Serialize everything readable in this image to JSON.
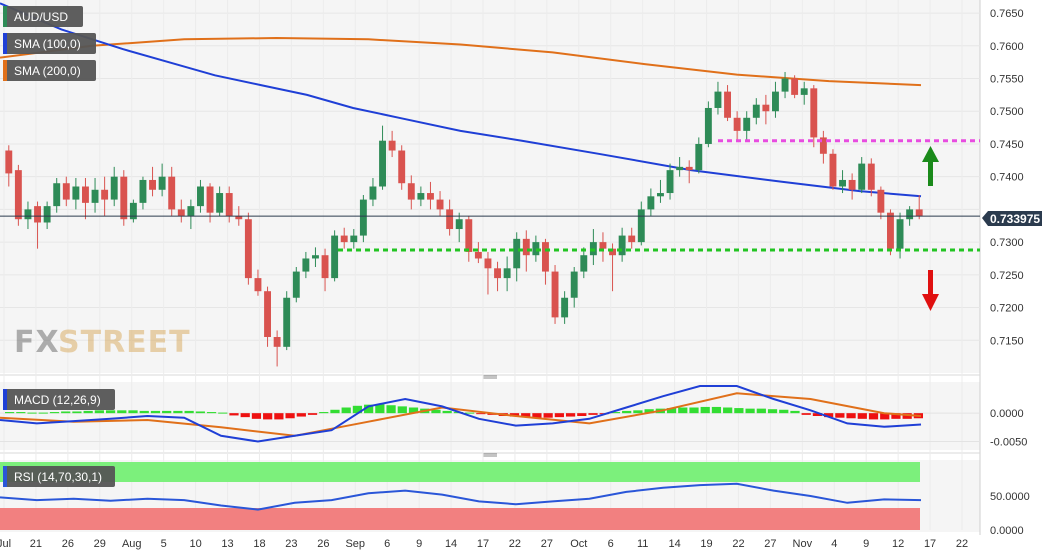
{
  "legend": {
    "pair": "AUD/USD",
    "sma100": "SMA (100,0)",
    "sma200": "SMA (200,0)",
    "macd": "MACD (12,26,9)",
    "rsi": "RSI (14,70,30,1)"
  },
  "watermark": {
    "part1": "FX",
    "part2": "STREET"
  },
  "current_price_label": "0.733975",
  "colors": {
    "bull": "#2e8b57",
    "bear": "#d9534f",
    "sma100": "#1f3fd6",
    "sma200": "#e0701a",
    "support": "#22c422",
    "resistance": "#e84ce0",
    "macd_line": "#1f3fd6",
    "signal_line": "#e0701a",
    "rsi_line": "#2a56d8",
    "rsi_overbought": "#7cf07c",
    "rsi_oversold": "#f28080",
    "arrow_up": "#1a8a1a",
    "arrow_down": "#e01010"
  },
  "chart_data": [
    {
      "type": "candlestick",
      "title": "AUD/USD",
      "x_labels": [
        "Jul",
        "21",
        "26",
        "29",
        "Aug",
        "5",
        "10",
        "13",
        "18",
        "23",
        "26",
        "Sep",
        "6",
        "9",
        "14",
        "17",
        "22",
        "27",
        "Oct",
        "6",
        "11",
        "14",
        "19",
        "22",
        "27",
        "Nov",
        "4",
        "9",
        "12",
        "17",
        "22"
      ],
      "y_ticks": [
        0.715,
        0.72,
        0.725,
        0.73,
        0.735,
        0.74,
        0.745,
        0.75,
        0.755,
        0.76,
        0.765
      ],
      "y_tick_labels": [
        "0.7150",
        "0.7200",
        "0.7250",
        "0.7300",
        "",
        "0.7400",
        "0.7450",
        "0.7500",
        "0.7550",
        "0.7600",
        "0.7650"
      ],
      "ylim": [
        0.71,
        0.767
      ],
      "last_price": 0.733975,
      "support_level": 0.7288,
      "resistance_level": 0.7455,
      "candles": [
        [
          0.744,
          0.7405,
          0.7448,
          0.7385
        ],
        [
          0.741,
          0.7335,
          0.7418,
          0.7325
        ],
        [
          0.7335,
          0.735,
          0.7362,
          0.732
        ],
        [
          0.7355,
          0.733,
          0.7362,
          0.729
        ],
        [
          0.733,
          0.7355,
          0.7362,
          0.732
        ],
        [
          0.7355,
          0.739,
          0.7398,
          0.7345
        ],
        [
          0.739,
          0.7365,
          0.74,
          0.7355
        ],
        [
          0.7365,
          0.7385,
          0.7398,
          0.735
        ],
        [
          0.7385,
          0.736,
          0.7398,
          0.7335
        ],
        [
          0.736,
          0.738,
          0.7398,
          0.7345
        ],
        [
          0.738,
          0.7365,
          0.74,
          0.734
        ],
        [
          0.7365,
          0.74,
          0.7415,
          0.7355
        ],
        [
          0.74,
          0.7335,
          0.741,
          0.7325
        ],
        [
          0.7335,
          0.736,
          0.7365,
          0.733
        ],
        [
          0.736,
          0.7395,
          0.74,
          0.735
        ],
        [
          0.7395,
          0.738,
          0.7415,
          0.737
        ],
        [
          0.738,
          0.74,
          0.742,
          0.737
        ],
        [
          0.74,
          0.735,
          0.7415,
          0.734
        ],
        [
          0.735,
          0.734,
          0.7365,
          0.733
        ],
        [
          0.734,
          0.7355,
          0.7365,
          0.732
        ],
        [
          0.7355,
          0.7385,
          0.7395,
          0.7345
        ],
        [
          0.7385,
          0.7345,
          0.739,
          0.733
        ],
        [
          0.7345,
          0.7375,
          0.7385,
          0.734
        ],
        [
          0.7375,
          0.734,
          0.7385,
          0.733
        ],
        [
          0.734,
          0.7335,
          0.7355,
          0.7325
        ],
        [
          0.7335,
          0.7245,
          0.7345,
          0.7235
        ],
        [
          0.7245,
          0.7225,
          0.7258,
          0.7218
        ],
        [
          0.7225,
          0.7155,
          0.7232,
          0.714
        ],
        [
          0.7155,
          0.714,
          0.7165,
          0.711
        ],
        [
          0.714,
          0.7215,
          0.7225,
          0.7135
        ],
        [
          0.7215,
          0.7255,
          0.7262,
          0.7208
        ],
        [
          0.7255,
          0.7275,
          0.7285,
          0.7245
        ],
        [
          0.7275,
          0.728,
          0.7292,
          0.7262
        ],
        [
          0.728,
          0.7245,
          0.729,
          0.7225
        ],
        [
          0.7245,
          0.731,
          0.7318,
          0.724
        ],
        [
          0.731,
          0.73,
          0.7322,
          0.729
        ],
        [
          0.73,
          0.731,
          0.732,
          0.729
        ],
        [
          0.731,
          0.7365,
          0.7372,
          0.73
        ],
        [
          0.7365,
          0.7385,
          0.7398,
          0.7355
        ],
        [
          0.7385,
          0.7455,
          0.7478,
          0.738
        ],
        [
          0.7455,
          0.744,
          0.747,
          0.743
        ],
        [
          0.744,
          0.739,
          0.7448,
          0.738
        ],
        [
          0.739,
          0.7365,
          0.7402,
          0.735
        ],
        [
          0.7365,
          0.7375,
          0.7385,
          0.7355
        ],
        [
          0.7375,
          0.7365,
          0.7392,
          0.735
        ],
        [
          0.7365,
          0.735,
          0.7378,
          0.734
        ],
        [
          0.735,
          0.732,
          0.7365,
          0.731
        ],
        [
          0.732,
          0.7335,
          0.7345,
          0.73
        ],
        [
          0.7335,
          0.7285,
          0.734,
          0.727
        ],
        [
          0.7285,
          0.7275,
          0.73,
          0.7268
        ],
        [
          0.7275,
          0.726,
          0.7285,
          0.722
        ],
        [
          0.726,
          0.7245,
          0.727,
          0.7225
        ],
        [
          0.7245,
          0.726,
          0.7278,
          0.7225
        ],
        [
          0.726,
          0.7305,
          0.7315,
          0.724
        ],
        [
          0.7305,
          0.728,
          0.7318,
          0.7255
        ],
        [
          0.728,
          0.73,
          0.731,
          0.727
        ],
        [
          0.73,
          0.7255,
          0.7305,
          0.7235
        ],
        [
          0.7255,
          0.7185,
          0.7265,
          0.7175
        ],
        [
          0.7185,
          0.7215,
          0.7225,
          0.7175
        ],
        [
          0.7215,
          0.7255,
          0.7262,
          0.72
        ],
        [
          0.7255,
          0.728,
          0.7292,
          0.7245
        ],
        [
          0.728,
          0.73,
          0.732,
          0.7265
        ],
        [
          0.73,
          0.729,
          0.7315,
          0.727
        ],
        [
          0.729,
          0.728,
          0.7298,
          0.7225
        ],
        [
          0.728,
          0.731,
          0.7322,
          0.727
        ],
        [
          0.731,
          0.73,
          0.7322,
          0.729
        ],
        [
          0.73,
          0.735,
          0.7362,
          0.7295
        ],
        [
          0.735,
          0.737,
          0.7382,
          0.734
        ],
        [
          0.737,
          0.7375,
          0.7395,
          0.736
        ],
        [
          0.7375,
          0.741,
          0.742,
          0.7365
        ],
        [
          0.741,
          0.7415,
          0.743,
          0.74
        ],
        [
          0.7415,
          0.741,
          0.7425,
          0.739
        ],
        [
          0.741,
          0.745,
          0.746,
          0.7405
        ],
        [
          0.745,
          0.7505,
          0.7515,
          0.7445
        ],
        [
          0.7505,
          0.753,
          0.7545,
          0.7495
        ],
        [
          0.753,
          0.749,
          0.754,
          0.7485
        ],
        [
          0.749,
          0.747,
          0.75,
          0.7455
        ],
        [
          0.747,
          0.749,
          0.75,
          0.7455
        ],
        [
          0.749,
          0.751,
          0.752,
          0.748
        ],
        [
          0.751,
          0.75,
          0.7525,
          0.748
        ],
        [
          0.75,
          0.753,
          0.7545,
          0.749
        ],
        [
          0.753,
          0.755,
          0.756,
          0.752
        ],
        [
          0.755,
          0.7525,
          0.7555,
          0.752
        ],
        [
          0.7525,
          0.7535,
          0.7545,
          0.751
        ],
        [
          0.7535,
          0.746,
          0.754,
          0.7445
        ],
        [
          0.746,
          0.7435,
          0.747,
          0.742
        ],
        [
          0.7435,
          0.7385,
          0.7442,
          0.738
        ],
        [
          0.7385,
          0.7395,
          0.741,
          0.7375
        ],
        [
          0.7395,
          0.738,
          0.7405,
          0.7365
        ],
        [
          0.738,
          0.742,
          0.743,
          0.7375
        ],
        [
          0.742,
          0.738,
          0.7428,
          0.737
        ],
        [
          0.738,
          0.7345,
          0.7385,
          0.7335
        ],
        [
          0.7345,
          0.729,
          0.735,
          0.728
        ],
        [
          0.729,
          0.7335,
          0.7345,
          0.7275
        ],
        [
          0.7335,
          0.735,
          0.7355,
          0.7325
        ],
        [
          0.735,
          0.734,
          0.7372,
          0.7335
        ]
      ],
      "sma100": [
        [
          0,
          0.7665
        ],
        [
          20,
          0.7625
        ],
        [
          40,
          0.7595
        ],
        [
          55,
          0.7575
        ],
        [
          70,
          0.7555
        ],
        [
          85,
          0.754
        ],
        [
          100,
          0.7525
        ],
        [
          115,
          0.7505
        ],
        [
          130,
          0.749
        ],
        [
          150,
          0.747
        ],
        [
          170,
          0.7455
        ],
        [
          195,
          0.7435
        ],
        [
          225,
          0.741
        ],
        [
          255,
          0.7392
        ],
        [
          280,
          0.7378
        ],
        [
          300,
          0.737
        ]
      ],
      "sma200": [
        [
          0,
          0.7582
        ],
        [
          40,
          0.76
        ],
        [
          80,
          0.761
        ],
        [
          120,
          0.7612
        ],
        [
          160,
          0.761
        ],
        [
          200,
          0.7602
        ],
        [
          240,
          0.759
        ],
        [
          280,
          0.7572
        ],
        [
          320,
          0.7556
        ],
        [
          360,
          0.7546
        ],
        [
          400,
          0.754
        ]
      ]
    },
    {
      "type": "bar+line",
      "title": "MACD (12,26,9)",
      "y_ticks": [
        0.0,
        -0.005
      ],
      "y_tick_labels": [
        "0.0000",
        "-0.0050"
      ],
      "ylim": [
        -0.0065,
        0.0055
      ],
      "histogram": [
        0.0002,
        0.0002,
        0.0001,
        0.0001,
        0.0002,
        0.0003,
        0.0003,
        0.0004,
        0.0005,
        0.0005,
        0.0005,
        0.0005,
        0.0004,
        0.0004,
        0.0004,
        0.0004,
        0.0004,
        0.0003,
        0.0002,
        0.0001,
        -0.0004,
        -0.0007,
        -0.001,
        -0.0011,
        -0.0011,
        -0.0009,
        -0.0006,
        -0.0003,
        0.0002,
        0.0006,
        0.001,
        0.0013,
        0.0015,
        0.0016,
        0.0014,
        0.0012,
        0.001,
        0.0008,
        0.0006,
        0.0004,
        0.0002,
        0.0001,
        -0.0001,
        -0.0003,
        -0.0005,
        -0.0006,
        -0.0007,
        -0.0008,
        -0.0008,
        -0.0007,
        -0.0006,
        -0.0005,
        -0.0003,
        -0.0001,
        0.0002,
        0.0004,
        0.0005,
        0.0007,
        0.0008,
        0.0009,
        0.001,
        0.001,
        0.0011,
        0.0011,
        0.001,
        0.0009,
        0.0008,
        0.0008,
        0.0007,
        0.0006,
        0.0004,
        -0.0003,
        -0.0005,
        -0.0007,
        -0.0008,
        -0.0009,
        -0.001,
        -0.0011,
        -0.0011,
        -0.001,
        -0.001,
        -0.0009
      ],
      "macd_line": [
        [
          0,
          -0.0012
        ],
        [
          4,
          -0.0018
        ],
        [
          8,
          -0.0014
        ],
        [
          12,
          -0.001
        ],
        [
          16,
          -0.0005
        ],
        [
          20,
          -0.0008
        ],
        [
          24,
          -0.004
        ],
        [
          28,
          -0.005
        ],
        [
          32,
          -0.004
        ],
        [
          36,
          -0.003
        ],
        [
          40,
          0.0012
        ],
        [
          44,
          0.0025
        ],
        [
          48,
          0.0012
        ],
        [
          52,
          -0.001
        ],
        [
          56,
          -0.0022
        ],
        [
          60,
          -0.0018
        ],
        [
          64,
          -0.001
        ],
        [
          68,
          0.001
        ],
        [
          72,
          0.003
        ],
        [
          76,
          0.0048
        ],
        [
          80,
          0.0048
        ],
        [
          84,
          0.0025
        ],
        [
          88,
          0.0005
        ],
        [
          92,
          -0.0018
        ],
        [
          96,
          -0.0024
        ],
        [
          100,
          -0.002
        ]
      ],
      "signal_line": [
        [
          0,
          -0.0008
        ],
        [
          8,
          -0.0015
        ],
        [
          16,
          -0.0012
        ],
        [
          24,
          -0.0025
        ],
        [
          32,
          -0.004
        ],
        [
          40,
          -0.0015
        ],
        [
          48,
          0.001
        ],
        [
          56,
          -0.0005
        ],
        [
          64,
          -0.0018
        ],
        [
          72,
          0.0005
        ],
        [
          80,
          0.0035
        ],
        [
          88,
          0.0025
        ],
        [
          96,
          0.0
        ],
        [
          100,
          -0.0005
        ]
      ]
    },
    {
      "type": "line",
      "title": "RSI (14,70,30,1)",
      "y_ticks": [
        50.0,
        0.0
      ],
      "y_tick_labels": [
        "50.0000",
        "0.0000"
      ],
      "ylim": [
        0,
        100
      ],
      "overbought": 70,
      "oversold": 30,
      "rsi_line": [
        [
          0,
          48
        ],
        [
          4,
          44
        ],
        [
          8,
          46
        ],
        [
          12,
          43
        ],
        [
          16,
          46
        ],
        [
          20,
          44
        ],
        [
          24,
          36
        ],
        [
          28,
          30
        ],
        [
          32,
          40
        ],
        [
          36,
          44
        ],
        [
          40,
          54
        ],
        [
          44,
          58
        ],
        [
          48,
          52
        ],
        [
          52,
          42
        ],
        [
          56,
          38
        ],
        [
          60,
          42
        ],
        [
          64,
          46
        ],
        [
          68,
          56
        ],
        [
          72,
          62
        ],
        [
          76,
          66
        ],
        [
          80,
          68
        ],
        [
          84,
          58
        ],
        [
          88,
          50
        ],
        [
          92,
          40
        ],
        [
          96,
          45
        ],
        [
          100,
          44
        ]
      ]
    }
  ]
}
